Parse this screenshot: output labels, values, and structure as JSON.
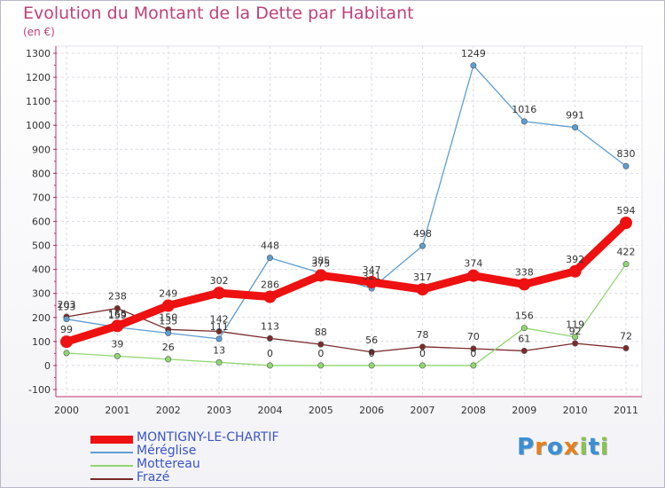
{
  "title": "Evolution du Montant de la Dette par Habitant",
  "subtitle": "(en €)",
  "brand_logo": "Proxiti",
  "colors": {
    "title": "#c0407a",
    "axis_text": "#333333",
    "grid": "#d8d8e4"
  },
  "chart_data": {
    "type": "line",
    "title": "Evolution du Montant de la Dette par Habitant",
    "ylabel": "(en €)",
    "xlabel": "",
    "x": [
      "2000",
      "2001",
      "2002",
      "2003",
      "2004",
      "2005",
      "2006",
      "2007",
      "2008",
      "2009",
      "2010",
      "2011"
    ],
    "ylim": [
      -100,
      1300
    ],
    "yticks": [
      -100,
      0,
      100,
      200,
      300,
      400,
      500,
      600,
      700,
      800,
      900,
      1000,
      1100,
      1200,
      1300
    ],
    "grid": true,
    "legend_position": "bottom",
    "series": [
      {
        "name": "MONTIGNY-LE-CHARTIF",
        "color": "#ee1111",
        "width": 9,
        "values": [
          99,
          165,
          249,
          302,
          286,
          375,
          347,
          317,
          374,
          338,
          392,
          594
        ],
        "labels": [
          "99",
          "165",
          "249",
          "302",
          "286",
          "375",
          "347",
          "317",
          "374",
          "338",
          "392",
          "594"
        ]
      },
      {
        "name": "Méréglise",
        "color": "#5d9ed3",
        "width": 1.3,
        "values": [
          193,
          159,
          135,
          111,
          448,
          385,
          321,
          498,
          1249,
          1016,
          991,
          830
        ],
        "labels": [
          "193",
          "159",
          "135",
          "111",
          "448",
          "385",
          "321",
          "498",
          "1249",
          "1016",
          "991",
          "830"
        ]
      },
      {
        "name": "Mottereau",
        "color": "#8fd670",
        "width": 1.3,
        "values": [
          52,
          39,
          26,
          13,
          0,
          0,
          0,
          0,
          0,
          156,
          119,
          422
        ],
        "labels": [
          "",
          "39",
          "26",
          "13",
          "0",
          "0",
          "0",
          "0",
          "0",
          "156",
          "119",
          "422"
        ]
      },
      {
        "name": "Frazé",
        "color": "#7a2a2a",
        "width": 1.3,
        "values": [
          203,
          238,
          150,
          142,
          113,
          88,
          56,
          78,
          70,
          61,
          92,
          72
        ],
        "labels": [
          "203",
          "238",
          "150",
          "142",
          "113",
          "88",
          "56",
          "78",
          "70",
          "61",
          "92",
          "72"
        ]
      }
    ]
  }
}
